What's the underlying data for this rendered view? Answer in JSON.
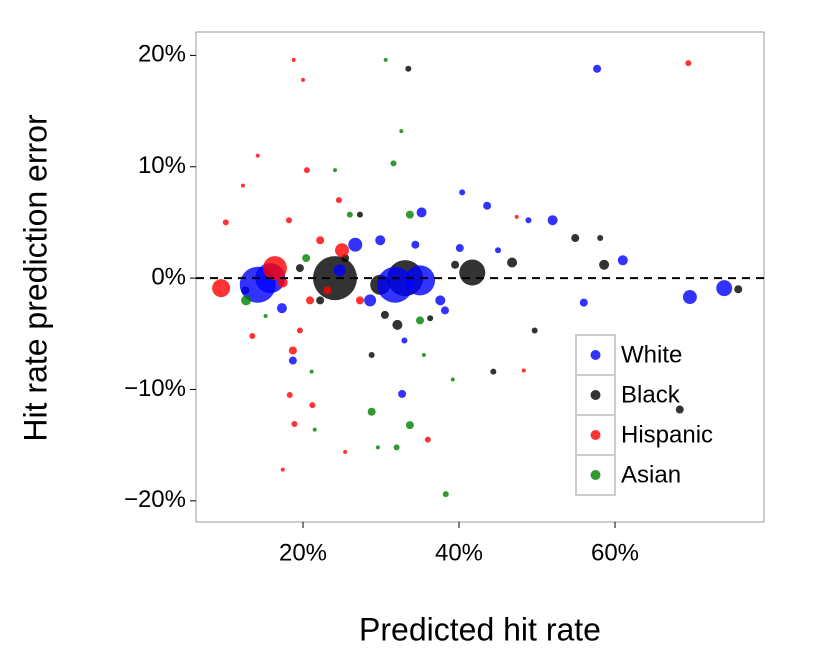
{
  "chart_data": {
    "type": "scatter",
    "xlabel": "Predicted hit rate",
    "ylabel": "Hit rate prediction error",
    "xlim": [
      6.28,
      79.1
    ],
    "ylim": [
      -21.9,
      22.1
    ],
    "xticks": [
      {
        "value": 20,
        "label": "20%"
      },
      {
        "value": 40,
        "label": "40%"
      },
      {
        "value": 60,
        "label": "60%"
      }
    ],
    "yticks": [
      {
        "value": -20,
        "label": "−20%"
      },
      {
        "value": -10,
        "label": "−10%"
      },
      {
        "value": 0,
        "label": "0%"
      },
      {
        "value": 10,
        "label": "10%"
      },
      {
        "value": 20,
        "label": "20%"
      }
    ],
    "reference_line": 0,
    "legend": "lower right",
    "series": [
      {
        "name": "Black",
        "color": "#000000",
        "x": [
          24.1,
          33.1,
          41.7,
          29.9,
          33.5,
          68.3,
          75.8,
          58.6,
          54.9,
          58.1,
          44.4,
          46.8,
          49.7,
          32.1,
          28.8,
          27.3,
          22.2,
          36.3,
          25.4,
          39.5,
          19.6,
          12.6,
          30.5
        ],
        "values": [
          0,
          0,
          0.5,
          -0.6,
          18.8,
          -11.8,
          -1,
          1.2,
          3.6,
          3.6,
          -8.4,
          1.4,
          -4.7,
          -4.2,
          -6.9,
          5.7,
          -2,
          -3.6,
          1.8,
          1.2,
          0.9,
          -1.1,
          -3.3
        ],
        "sizes": [
          484,
          324,
          169,
          100,
          9,
          16,
          16,
          25,
          16,
          9,
          9,
          25,
          9,
          25,
          9,
          9,
          16,
          9,
          16,
          16,
          16,
          16,
          16
        ]
      },
      {
        "name": "White",
        "color": "#0000ff",
        "x": [
          14.2,
          15.8,
          31.8,
          35,
          26.7,
          61,
          69.6,
          74,
          57.7,
          52,
          56,
          43.6,
          40.4,
          35.2,
          32.7,
          18.7,
          17.3,
          37.6,
          40.1,
          29.9,
          24.7,
          28.6,
          34.4,
          45,
          48.9,
          38.2,
          33
        ],
        "values": [
          -0.6,
          0,
          -0.6,
          -0.2,
          3,
          1.6,
          -1.7,
          -0.9,
          18.8,
          5.2,
          -2.2,
          6.5,
          7.7,
          5.9,
          -10.4,
          -7.4,
          -2.7,
          -2,
          2.7,
          3.4,
          0.7,
          -2,
          3,
          2.5,
          5.2,
          -2.9,
          -5.6
        ],
        "sizes": [
          324,
          225,
          324,
          225,
          49,
          25,
          49,
          64,
          16,
          25,
          16,
          16,
          9,
          25,
          16,
          16,
          25,
          25,
          16,
          25,
          36,
          36,
          16,
          9,
          9,
          16,
          9
        ]
      },
      {
        "name": "Hispanic",
        "color": "#ff0000",
        "x": [
          9.5,
          16.4,
          25,
          69.4,
          18.8,
          20,
          14.2,
          20.5,
          18.2,
          17.4,
          18.7,
          18.3,
          17.4,
          25.4,
          36,
          48.3,
          47.4,
          12.3,
          10.1,
          13.5,
          20.9,
          27.3,
          22.2,
          18.9,
          21.2,
          23.1,
          19.6,
          24.6
        ],
        "values": [
          -0.9,
          0.9,
          2.5,
          19.3,
          19.6,
          17.8,
          11,
          9.7,
          5.2,
          -0.4,
          -6.5,
          -10.5,
          -17.2,
          -15.6,
          -14.5,
          -8.3,
          5.5,
          8.3,
          5,
          -5.2,
          -2,
          -2,
          3.4,
          -13.1,
          -11.4,
          -1.1,
          -4.7,
          7
        ],
        "sizes": [
          81,
          144,
          49,
          9,
          4,
          4,
          4,
          9,
          9,
          25,
          16,
          9,
          4,
          4,
          9,
          4,
          4,
          4,
          9,
          9,
          16,
          16,
          16,
          9,
          9,
          16,
          9,
          9
        ]
      },
      {
        "name": "Asian",
        "color": "#008000",
        "x": [
          30.6,
          32.6,
          31.6,
          33.7,
          12.7,
          20.4,
          28.8,
          33.7,
          38.3,
          32,
          39.2,
          29.6,
          21.1,
          24.1,
          26,
          35,
          21.5,
          35.5,
          15.2
        ],
        "values": [
          19.6,
          13.2,
          10.3,
          5.7,
          -2,
          1.8,
          -12,
          -13.2,
          -19.4,
          -15.2,
          -9.1,
          -15.2,
          -8.4,
          9.7,
          5.7,
          -3.8,
          -13.6,
          -6.9,
          -3.4
        ],
        "sizes": [
          4,
          4,
          9,
          16,
          25,
          16,
          16,
          16,
          9,
          9,
          4,
          4,
          4,
          4,
          9,
          16,
          4,
          4,
          4
        ]
      }
    ],
    "legend_order": [
      "White",
      "Black",
      "Hispanic",
      "Asian"
    ]
  }
}
